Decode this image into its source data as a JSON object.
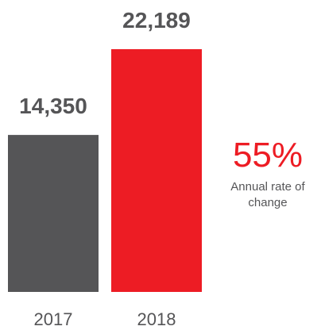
{
  "chart_data": {
    "type": "bar",
    "categories": [
      "2017",
      "2018"
    ],
    "values": [
      14350,
      22189
    ],
    "value_labels": [
      "14,350",
      "22,189"
    ],
    "colors": [
      "#555557",
      "#ed1c24"
    ],
    "ylim": [
      0,
      22189
    ],
    "grid": false,
    "legend": "none"
  },
  "annotation": {
    "value": "55%",
    "caption": "Annual rate of change",
    "color": "#ed1c24"
  }
}
